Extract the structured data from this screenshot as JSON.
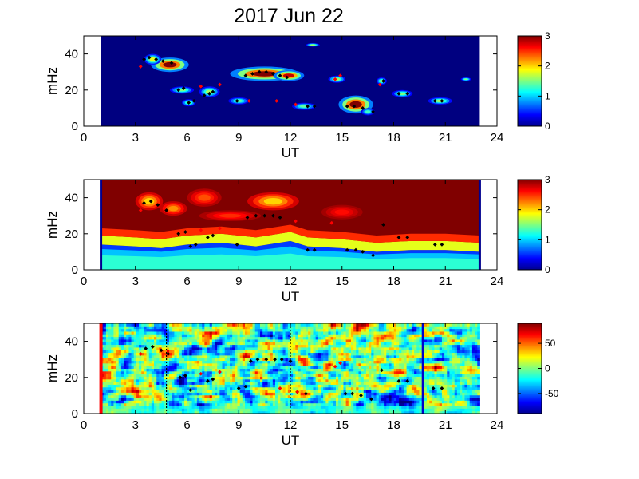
{
  "figure": {
    "title": "2017 Jun 22"
  },
  "chart_data": [
    {
      "type": "heatmap",
      "panel": "top",
      "xlabel": "UT",
      "ylabel": "mHz",
      "xlim": [
        0,
        24
      ],
      "ylim": [
        0,
        50
      ],
      "xticks": [
        0,
        3,
        6,
        9,
        12,
        15,
        18,
        21,
        24
      ],
      "yticks": [
        0,
        20,
        40
      ],
      "colorbar": {
        "range": [
          0,
          3
        ],
        "ticks": [
          0,
          1,
          2,
          3
        ],
        "colormap": "jet"
      },
      "data_window": [
        1.0,
        23.0
      ],
      "background_level": 0,
      "blobs": [
        {
          "x": 5.0,
          "y": 34,
          "rx": 1.1,
          "ry": 4,
          "v": 3.0
        },
        {
          "x": 4.0,
          "y": 37,
          "rx": 0.5,
          "ry": 3,
          "v": 1.8
        },
        {
          "x": 5.7,
          "y": 20,
          "rx": 0.7,
          "ry": 2,
          "v": 1.5
        },
        {
          "x": 6.1,
          "y": 13,
          "rx": 0.4,
          "ry": 2,
          "v": 1.5
        },
        {
          "x": 7.3,
          "y": 19,
          "rx": 0.6,
          "ry": 3,
          "v": 1.6
        },
        {
          "x": 9.0,
          "y": 14,
          "rx": 0.6,
          "ry": 2,
          "v": 1.4
        },
        {
          "x": 10.5,
          "y": 29,
          "rx": 2.0,
          "ry": 4,
          "v": 3.0
        },
        {
          "x": 11.9,
          "y": 28,
          "rx": 0.9,
          "ry": 3,
          "v": 2.8
        },
        {
          "x": 13.3,
          "y": 45,
          "rx": 0.4,
          "ry": 1,
          "v": 1.6
        },
        {
          "x": 12.8,
          "y": 11,
          "rx": 0.7,
          "ry": 2,
          "v": 1.4
        },
        {
          "x": 14.7,
          "y": 26,
          "rx": 0.5,
          "ry": 2,
          "v": 1.6
        },
        {
          "x": 15.8,
          "y": 12,
          "rx": 1.0,
          "ry": 5,
          "v": 3.0
        },
        {
          "x": 16.5,
          "y": 8,
          "rx": 0.4,
          "ry": 2,
          "v": 1.3
        },
        {
          "x": 17.3,
          "y": 25,
          "rx": 0.3,
          "ry": 2,
          "v": 1.5
        },
        {
          "x": 18.5,
          "y": 18,
          "rx": 0.6,
          "ry": 2,
          "v": 1.5
        },
        {
          "x": 20.7,
          "y": 14,
          "rx": 0.7,
          "ry": 2,
          "v": 1.6
        },
        {
          "x": 22.2,
          "y": 26,
          "rx": 0.3,
          "ry": 1,
          "v": 1.5
        }
      ],
      "markers_black": [
        [
          3.5,
          37
        ],
        [
          3.8,
          38
        ],
        [
          4.2,
          37
        ],
        [
          4.6,
          36
        ],
        [
          5.1,
          35
        ],
        [
          5.5,
          20
        ],
        [
          5.8,
          21
        ],
        [
          6.1,
          13
        ],
        [
          6.4,
          14
        ],
        [
          7.0,
          17
        ],
        [
          7.3,
          18
        ],
        [
          7.5,
          19
        ],
        [
          8.9,
          14
        ],
        [
          9.4,
          28
        ],
        [
          9.8,
          29
        ],
        [
          10.2,
          30
        ],
        [
          10.6,
          30
        ],
        [
          11.0,
          29
        ],
        [
          11.4,
          28
        ],
        [
          11.8,
          27
        ],
        [
          13.0,
          11
        ],
        [
          13.4,
          11
        ],
        [
          15.3,
          11
        ],
        [
          15.7,
          11
        ],
        [
          16.2,
          10
        ],
        [
          16.8,
          8
        ],
        [
          17.4,
          25
        ],
        [
          18.3,
          18
        ],
        [
          18.8,
          18
        ],
        [
          20.4,
          14
        ],
        [
          20.8,
          14
        ]
      ],
      "markers_red": [
        [
          3.3,
          33
        ],
        [
          6.8,
          22
        ],
        [
          7.9,
          23
        ],
        [
          9.6,
          14
        ],
        [
          11.2,
          14
        ],
        [
          12.3,
          12
        ],
        [
          14.6,
          26
        ],
        [
          14.9,
          28
        ],
        [
          17.2,
          23
        ]
      ],
      "vlines": []
    },
    {
      "type": "heatmap",
      "panel": "middle",
      "xlabel": "UT",
      "ylabel": "mHz",
      "xlim": [
        0,
        24
      ],
      "ylim": [
        0,
        50
      ],
      "xticks": [
        0,
        3,
        6,
        9,
        12,
        15,
        18,
        21,
        24
      ],
      "yticks": [
        0,
        20,
        40
      ],
      "colorbar": {
        "range": [
          0,
          3
        ],
        "ticks": [
          0,
          1,
          2,
          3
        ],
        "colormap": "jet"
      },
      "data_window": [
        1.0,
        23.0
      ],
      "background_level": 3,
      "low_band": [
        [
          1,
          14
        ],
        [
          3,
          13
        ],
        [
          4.5,
          12
        ],
        [
          6,
          14
        ],
        [
          8,
          15
        ],
        [
          10,
          13
        ],
        [
          12,
          16
        ],
        [
          13,
          13
        ],
        [
          15,
          12
        ],
        [
          17,
          10
        ],
        [
          19,
          11
        ],
        [
          21,
          11
        ],
        [
          23,
          10
        ]
      ],
      "blobs": [
        {
          "x": 3.8,
          "y": 38,
          "rx": 0.8,
          "ry": 5,
          "v": 2.0
        },
        {
          "x": 5.2,
          "y": 34,
          "rx": 0.8,
          "ry": 4,
          "v": 2.2
        },
        {
          "x": 7.0,
          "y": 40,
          "rx": 1.0,
          "ry": 5,
          "v": 2.4
        },
        {
          "x": 11.0,
          "y": 38,
          "rx": 1.5,
          "ry": 5,
          "v": 2.0
        },
        {
          "x": 15.0,
          "y": 32,
          "rx": 1.2,
          "ry": 4,
          "v": 2.6
        },
        {
          "x": 8.5,
          "y": 30,
          "rx": 1.8,
          "ry": 3,
          "v": 2.5
        }
      ],
      "markers_black": [
        [
          3.5,
          37
        ],
        [
          3.9,
          38
        ],
        [
          4.3,
          36
        ],
        [
          4.8,
          33
        ],
        [
          5.5,
          20
        ],
        [
          5.9,
          21
        ],
        [
          6.2,
          13
        ],
        [
          6.5,
          14
        ],
        [
          7.2,
          18
        ],
        [
          7.5,
          19
        ],
        [
          8.9,
          14
        ],
        [
          9.5,
          29
        ],
        [
          10.0,
          30
        ],
        [
          10.5,
          30
        ],
        [
          11.0,
          30
        ],
        [
          11.4,
          29
        ],
        [
          13.0,
          11
        ],
        [
          13.4,
          11
        ],
        [
          15.3,
          11
        ],
        [
          15.8,
          11
        ],
        [
          16.2,
          10
        ],
        [
          16.8,
          8
        ],
        [
          17.4,
          25
        ],
        [
          18.3,
          18
        ],
        [
          18.8,
          18
        ],
        [
          20.4,
          14
        ],
        [
          20.8,
          14
        ]
      ],
      "markers_red": [
        [
          3.3,
          33
        ],
        [
          6.8,
          22
        ],
        [
          7.9,
          23
        ],
        [
          12.3,
          27
        ],
        [
          14.4,
          26
        ]
      ],
      "vlines": [
        {
          "x": 1.0,
          "color": "#00008f",
          "style": "solid",
          "width": 3
        },
        {
          "x": 23.0,
          "color": "#00008f",
          "style": "solid",
          "width": 3
        }
      ]
    },
    {
      "type": "heatmap",
      "panel": "bottom",
      "xlabel": "UT",
      "ylabel": "mHz",
      "xlim": [
        0,
        24
      ],
      "ylim": [
        0,
        50
      ],
      "xticks": [
        0,
        3,
        6,
        9,
        12,
        15,
        18,
        21,
        24
      ],
      "yticks": [
        0,
        20,
        40
      ],
      "colorbar": {
        "range": [
          -90,
          90
        ],
        "ticks": [
          -50,
          0,
          50
        ],
        "colormap": "jet"
      },
      "data_window": [
        1.0,
        23.0
      ],
      "background_level": 0,
      "noise": true,
      "markers_black": [
        [
          3.6,
          36
        ],
        [
          4.0,
          37
        ],
        [
          4.5,
          35
        ],
        [
          4.9,
          33
        ],
        [
          5.6,
          20
        ],
        [
          5.9,
          21
        ],
        [
          6.2,
          13
        ],
        [
          7.2,
          18
        ],
        [
          7.5,
          19
        ],
        [
          9.0,
          14
        ],
        [
          9.4,
          15
        ],
        [
          9.7,
          29
        ],
        [
          10.1,
          30
        ],
        [
          10.6,
          30
        ],
        [
          11.1,
          30
        ],
        [
          11.5,
          30
        ],
        [
          12.0,
          29
        ],
        [
          12.4,
          12
        ],
        [
          12.9,
          11
        ],
        [
          15.2,
          11
        ],
        [
          15.6,
          11
        ],
        [
          16.1,
          10
        ],
        [
          16.7,
          8
        ],
        [
          17.3,
          24
        ],
        [
          18.3,
          18
        ],
        [
          18.8,
          18
        ],
        [
          20.3,
          14
        ],
        [
          20.8,
          14
        ]
      ],
      "markers_red": [
        [
          3.3,
          33
        ],
        [
          6.8,
          22
        ],
        [
          7.9,
          23
        ],
        [
          11.4,
          14
        ],
        [
          12.4,
          12
        ],
        [
          14.6,
          26
        ],
        [
          14.9,
          28
        ]
      ],
      "vlines": [
        {
          "x": 1.0,
          "color": "#ff0000",
          "style": "solid",
          "width": 4
        },
        {
          "x": 4.8,
          "color": "#000000",
          "style": "dotted",
          "width": 1.2
        },
        {
          "x": 12.0,
          "color": "#000000",
          "style": "dotted",
          "width": 1.2
        },
        {
          "x": 19.7,
          "color": "#0000cc",
          "style": "solid",
          "width": 3
        }
      ]
    }
  ]
}
